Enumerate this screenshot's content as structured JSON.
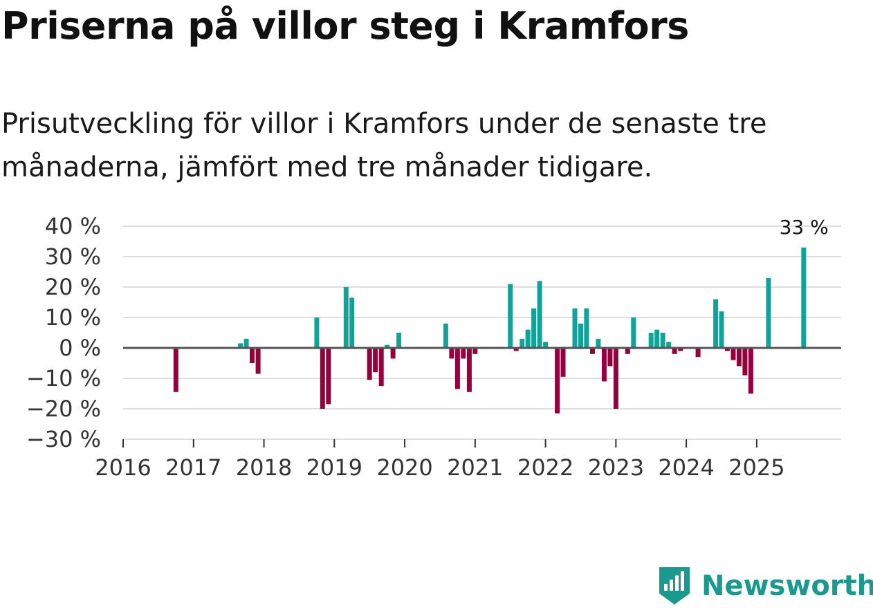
{
  "title": "Priserna på villor steg i Kramfors",
  "subtitle": "Prisutveckling för villor i Kramfors under de senaste tre månaderna, jämfört med tre månader tidigare.",
  "brand": {
    "name": "Newsworthy",
    "color": "#1a9a8f",
    "icon": "newsworthy-logo-icon"
  },
  "colors": {
    "positive": "#10a39a",
    "negative": "#96003e",
    "grid": "#dddddd",
    "zero_line": "#555555"
  },
  "chart_data": {
    "type": "bar",
    "title": "Priserna på villor steg i Kramfors",
    "xlabel": "",
    "ylabel": "",
    "ylim": [
      -30,
      40
    ],
    "y_ticks": [
      40,
      30,
      20,
      10,
      0,
      -10,
      -20,
      -30
    ],
    "y_tick_labels": [
      "40 %",
      "30 %",
      "20 %",
      "10 %",
      "0 %",
      "−10 %",
      "−20 %",
      "−30 %"
    ],
    "x_range": [
      2016.0,
      2026.2
    ],
    "x_ticks": [
      2016,
      2017,
      2018,
      2019,
      2020,
      2021,
      2022,
      2023,
      2024,
      2025
    ],
    "x_tick_labels": [
      "2016",
      "2017",
      "2018",
      "2019",
      "2020",
      "2021",
      "2022",
      "2023",
      "2024",
      "2025"
    ],
    "annotation": {
      "text": "33 %",
      "x": 2025.667,
      "y": 33
    },
    "series": [
      {
        "name": "Prisutveckling",
        "unit": "%",
        "points": [
          {
            "x": 2016.75,
            "y": -14.5
          },
          {
            "x": 2017.667,
            "y": 1.5
          },
          {
            "x": 2017.75,
            "y": 3
          },
          {
            "x": 2017.833,
            "y": -5
          },
          {
            "x": 2017.917,
            "y": -8.5
          },
          {
            "x": 2018.75,
            "y": 10
          },
          {
            "x": 2018.833,
            "y": -20
          },
          {
            "x": 2018.917,
            "y": -18.5
          },
          {
            "x": 2019.167,
            "y": 20
          },
          {
            "x": 2019.25,
            "y": 16.5
          },
          {
            "x": 2019.5,
            "y": -10.5
          },
          {
            "x": 2019.583,
            "y": -8
          },
          {
            "x": 2019.667,
            "y": -12.5
          },
          {
            "x": 2019.75,
            "y": 1
          },
          {
            "x": 2019.833,
            "y": -3.5
          },
          {
            "x": 2019.917,
            "y": 5
          },
          {
            "x": 2020.583,
            "y": 8
          },
          {
            "x": 2020.667,
            "y": -3.5
          },
          {
            "x": 2020.75,
            "y": -13.5
          },
          {
            "x": 2020.833,
            "y": -3.5
          },
          {
            "x": 2020.917,
            "y": -14.5
          },
          {
            "x": 2021.0,
            "y": -2
          },
          {
            "x": 2021.5,
            "y": 21
          },
          {
            "x": 2021.583,
            "y": -1
          },
          {
            "x": 2021.667,
            "y": 3
          },
          {
            "x": 2021.75,
            "y": 6
          },
          {
            "x": 2021.833,
            "y": 13
          },
          {
            "x": 2021.917,
            "y": 22
          },
          {
            "x": 2022.0,
            "y": 2
          },
          {
            "x": 2022.167,
            "y": -21.5
          },
          {
            "x": 2022.25,
            "y": -9.5
          },
          {
            "x": 2022.417,
            "y": 13
          },
          {
            "x": 2022.5,
            "y": 8
          },
          {
            "x": 2022.583,
            "y": 13
          },
          {
            "x": 2022.667,
            "y": -2
          },
          {
            "x": 2022.75,
            "y": 3
          },
          {
            "x": 2022.833,
            "y": -11
          },
          {
            "x": 2022.917,
            "y": -6
          },
          {
            "x": 2023.0,
            "y": -20
          },
          {
            "x": 2023.167,
            "y": -2
          },
          {
            "x": 2023.25,
            "y": 10
          },
          {
            "x": 2023.5,
            "y": 5
          },
          {
            "x": 2023.583,
            "y": 6
          },
          {
            "x": 2023.667,
            "y": 5
          },
          {
            "x": 2023.75,
            "y": 2
          },
          {
            "x": 2023.833,
            "y": -2
          },
          {
            "x": 2023.917,
            "y": -1
          },
          {
            "x": 2024.167,
            "y": -3
          },
          {
            "x": 2024.417,
            "y": 16
          },
          {
            "x": 2024.5,
            "y": 12
          },
          {
            "x": 2024.583,
            "y": -1
          },
          {
            "x": 2024.667,
            "y": -4
          },
          {
            "x": 2024.75,
            "y": -6
          },
          {
            "x": 2024.833,
            "y": -9
          },
          {
            "x": 2024.917,
            "y": -15
          },
          {
            "x": 2025.167,
            "y": 23
          },
          {
            "x": 2025.667,
            "y": 33
          }
        ]
      }
    ]
  }
}
